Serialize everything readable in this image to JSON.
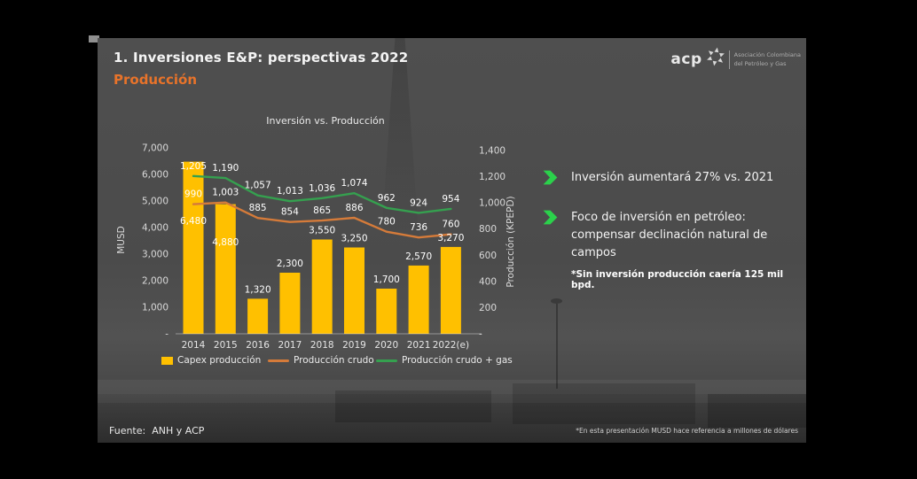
{
  "header": {
    "title": "1. Inversiones E&P: perspectivas 2022",
    "subtitle": "Producción",
    "subtitle_color": "#E8732A"
  },
  "brand": {
    "name": "acp",
    "org_line1": "Asociación Colombiana",
    "org_line2": "del Petróleo y Gas"
  },
  "chart_data": {
    "type": "combo-bar-line",
    "title": "Inversión vs. Producción",
    "categories": [
      "2014",
      "2015",
      "2016",
      "2017",
      "2018",
      "2019",
      "2020",
      "2021",
      "2022(e)"
    ],
    "bar_series": {
      "name": "Capex producción",
      "color": "#FFC000",
      "axis": "left",
      "values": [
        6480,
        4880,
        1320,
        2300,
        3550,
        3250,
        1700,
        2570,
        3270
      ]
    },
    "line_series": [
      {
        "name": "Producción crudo",
        "color": "#D57B3A",
        "axis": "right",
        "values": [
          990,
          1003,
          885,
          854,
          865,
          886,
          780,
          736,
          760
        ]
      },
      {
        "name": "Producción crudo + gas",
        "color": "#35A04F",
        "axis": "right",
        "values": [
          1205,
          1190,
          1057,
          1013,
          1036,
          1074,
          962,
          924,
          954
        ]
      }
    ],
    "left_axis": {
      "label": "MUSD",
      "min": 0,
      "max": 7000,
      "step": 1000,
      "zero_label": "-"
    },
    "right_axis": {
      "label": "Producción (KPEPD)",
      "min": 0,
      "max": 1400,
      "step": 200,
      "zero_label": "-"
    },
    "legend_position": "bottom",
    "grid": false
  },
  "insights": {
    "accent_color": "#2BD14B",
    "items": [
      {
        "text": "Inversión aumentará 27% vs. 2021"
      },
      {
        "text": "Foco de inversión en petróleo: compensar declinación natural de campos",
        "note": "*Sin inversión producción caería 125 mil bpd."
      }
    ]
  },
  "footer": {
    "source": "Fuente:  ANH y ACP",
    "footnote": "*En esta presentación MUSD hace referencia a millones de dólares"
  }
}
